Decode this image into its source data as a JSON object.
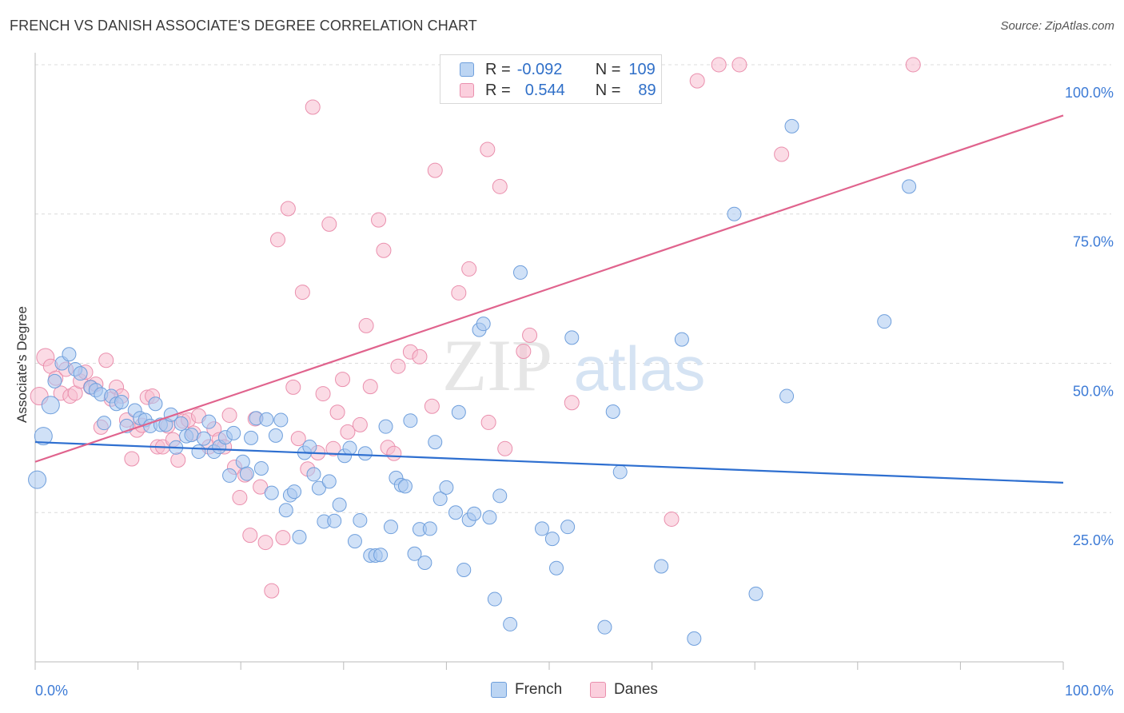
{
  "title": "FRENCH VS DANISH ASSOCIATE'S DEGREE CORRELATION CHART",
  "source": "Source: ZipAtlas.com",
  "watermark": {
    "zip": "ZIP",
    "atlas": "atlas"
  },
  "legend": {
    "french": {
      "r_label": "R =",
      "r_value": "-0.092",
      "n_label": "N =",
      "n_value": "109"
    },
    "danes": {
      "r_label": "R =",
      "r_value": "0.544",
      "n_label": "N =",
      "n_value": "89"
    }
  },
  "colors": {
    "french_fill": "#a9c8f0",
    "french_stroke": "#6f9fdc",
    "french_line": "#2e6fd0",
    "danes_fill": "#f7bdd0",
    "danes_stroke": "#ea8fad",
    "danes_line": "#e0638d",
    "axis_text": "#3d7bd6",
    "grid": "#dcdcdc"
  },
  "chart_data": {
    "type": "scatter",
    "title": "FRENCH VS DANISH ASSOCIATE'S DEGREE CORRELATION CHART",
    "xlabel": "",
    "ylabel": "Associate's Degree",
    "xlim": [
      0,
      100
    ],
    "ylim": [
      0,
      102
    ],
    "x_tick_labels": [
      "0.0%",
      "100.0%"
    ],
    "y_tick_labels": [
      "25.0%",
      "50.0%",
      "75.0%",
      "100.0%"
    ],
    "y_ticks": [
      25,
      50,
      75,
      100
    ],
    "grid": true,
    "legend_position": "top-center",
    "series": [
      {
        "name": "French",
        "trend": {
          "x": [
            0,
            100
          ],
          "y": [
            36.8,
            30.0
          ]
        },
        "points": [
          [
            0.2,
            30.5
          ],
          [
            0.8,
            37.8
          ],
          [
            1.5,
            43
          ],
          [
            1.9,
            47
          ],
          [
            2.6,
            50
          ],
          [
            3.3,
            51.5
          ],
          [
            3.9,
            49
          ],
          [
            4.4,
            48.3
          ],
          [
            5.4,
            46
          ],
          [
            5.9,
            45.5
          ],
          [
            6.4,
            44.8
          ],
          [
            6.7,
            40
          ],
          [
            7.4,
            44.5
          ],
          [
            7.9,
            43.2
          ],
          [
            8.4,
            43.5
          ],
          [
            8.9,
            39.5
          ],
          [
            9.7,
            42.1
          ],
          [
            10.2,
            40.8
          ],
          [
            10.7,
            40.5
          ],
          [
            11.2,
            39.5
          ],
          [
            11.7,
            43.2
          ],
          [
            12.2,
            39.7
          ],
          [
            12.7,
            39.7
          ],
          [
            13.2,
            41.4
          ],
          [
            13.7,
            35.9
          ],
          [
            14.2,
            39.9
          ],
          [
            14.7,
            37.8
          ],
          [
            15.2,
            38
          ],
          [
            15.9,
            35.2
          ],
          [
            16.4,
            37.4
          ],
          [
            16.9,
            40.2
          ],
          [
            17.4,
            35.2
          ],
          [
            17.9,
            36
          ],
          [
            18.5,
            37.6
          ],
          [
            18.9,
            31.2
          ],
          [
            19.3,
            38.3
          ],
          [
            20.2,
            33.5
          ],
          [
            20.6,
            31.5
          ],
          [
            21,
            37.5
          ],
          [
            21.5,
            40.8
          ],
          [
            22,
            32.4
          ],
          [
            22.5,
            40.6
          ],
          [
            23,
            28.3
          ],
          [
            23.4,
            37.9
          ],
          [
            23.9,
            40.5
          ],
          [
            24.4,
            25.4
          ],
          [
            24.8,
            27.9
          ],
          [
            25.2,
            28.5
          ],
          [
            25.7,
            20.9
          ],
          [
            26.2,
            35
          ],
          [
            26.7,
            36
          ],
          [
            27.1,
            31.4
          ],
          [
            27.6,
            29.1
          ],
          [
            28.1,
            23.5
          ],
          [
            28.6,
            30.2
          ],
          [
            29.1,
            23.6
          ],
          [
            29.6,
            26.3
          ],
          [
            30.1,
            34.5
          ],
          [
            30.6,
            35.8
          ],
          [
            31.1,
            20.2
          ],
          [
            31.6,
            23.7
          ],
          [
            32.1,
            34.9
          ],
          [
            32.6,
            17.8
          ],
          [
            33.1,
            17.8
          ],
          [
            33.6,
            17.9
          ],
          [
            34.1,
            39.4
          ],
          [
            34.6,
            22.6
          ],
          [
            35.1,
            30.8
          ],
          [
            35.6,
            29.6
          ],
          [
            36,
            29.4
          ],
          [
            36.5,
            40.4
          ],
          [
            36.9,
            18.1
          ],
          [
            37.4,
            22.2
          ],
          [
            37.9,
            16.6
          ],
          [
            38.4,
            22.3
          ],
          [
            38.9,
            36.8
          ],
          [
            39.4,
            27.3
          ],
          [
            40,
            29.2
          ],
          [
            40.9,
            25
          ],
          [
            41.2,
            41.8
          ],
          [
            41.7,
            15.4
          ],
          [
            42.2,
            23.8
          ],
          [
            42.7,
            24.8
          ],
          [
            43.2,
            55.6
          ],
          [
            43.6,
            56.6
          ],
          [
            44.2,
            24.2
          ],
          [
            44.7,
            10.5
          ],
          [
            45.2,
            27.8
          ],
          [
            46.2,
            6.3
          ],
          [
            47.2,
            65.2
          ],
          [
            49.3,
            22.3
          ],
          [
            50.3,
            20.6
          ],
          [
            50.7,
            15.7
          ],
          [
            51.8,
            22.6
          ],
          [
            52.2,
            54.3
          ],
          [
            55.4,
            5.8
          ],
          [
            56.2,
            41.9
          ],
          [
            56.9,
            31.8
          ],
          [
            60.9,
            16
          ],
          [
            62.9,
            54
          ],
          [
            64.1,
            3.9
          ],
          [
            68,
            75
          ],
          [
            70.1,
            11.4
          ],
          [
            73.1,
            44.5
          ],
          [
            73.6,
            89.7
          ],
          [
            82.6,
            57
          ],
          [
            85,
            79.6
          ]
        ]
      },
      {
        "name": "Danes",
        "trend": {
          "x": [
            0,
            100
          ],
          "y": [
            33.5,
            91.5
          ]
        },
        "points": [
          [
            0.4,
            44.5
          ],
          [
            1.0,
            51
          ],
          [
            1.5,
            49.5
          ],
          [
            2.0,
            47.5
          ],
          [
            2.5,
            45
          ],
          [
            3.0,
            49
          ],
          [
            3.4,
            44.5
          ],
          [
            3.9,
            45
          ],
          [
            4.4,
            47
          ],
          [
            4.9,
            48.5
          ],
          [
            5.4,
            46
          ],
          [
            5.9,
            46.5
          ],
          [
            6.4,
            39.3
          ],
          [
            6.9,
            50.5
          ],
          [
            7.4,
            44
          ],
          [
            7.9,
            46
          ],
          [
            8.4,
            44.5
          ],
          [
            8.9,
            40.5
          ],
          [
            9.4,
            34
          ],
          [
            9.9,
            38.8
          ],
          [
            10.4,
            39.6
          ],
          [
            10.9,
            44.3
          ],
          [
            11.4,
            44.5
          ],
          [
            11.9,
            36
          ],
          [
            12.4,
            36
          ],
          [
            12.9,
            39.5
          ],
          [
            13.4,
            37.2
          ],
          [
            13.9,
            33.8
          ],
          [
            14.4,
            40.3
          ],
          [
            14.9,
            40.5
          ],
          [
            15.4,
            38.3
          ],
          [
            15.9,
            41.2
          ],
          [
            16.9,
            36
          ],
          [
            17.4,
            39
          ],
          [
            17.9,
            37.2
          ],
          [
            18.4,
            36
          ],
          [
            18.9,
            41.3
          ],
          [
            19.4,
            32.6
          ],
          [
            19.9,
            27.5
          ],
          [
            20.4,
            31.3
          ],
          [
            20.9,
            21.2
          ],
          [
            21.4,
            40.7
          ],
          [
            21.9,
            29.3
          ],
          [
            22.4,
            20
          ],
          [
            23,
            11.9
          ],
          [
            23.6,
            70.7
          ],
          [
            24.1,
            20.8
          ],
          [
            24.6,
            75.9
          ],
          [
            25.1,
            46
          ],
          [
            25.6,
            37.4
          ],
          [
            26,
            61.9
          ],
          [
            26.5,
            32.3
          ],
          [
            27,
            92.9
          ],
          [
            27.5,
            35
          ],
          [
            28,
            44.9
          ],
          [
            28.6,
            73.3
          ],
          [
            29,
            35.7
          ],
          [
            29.4,
            41.8
          ],
          [
            29.9,
            47.3
          ],
          [
            30.4,
            38.5
          ],
          [
            31.6,
            39.7
          ],
          [
            32.2,
            56.3
          ],
          [
            32.6,
            46.1
          ],
          [
            33.4,
            74
          ],
          [
            33.9,
            68.9
          ],
          [
            34.3,
            35.9
          ],
          [
            34.9,
            34.9
          ],
          [
            35.3,
            49.5
          ],
          [
            36.5,
            51.9
          ],
          [
            37.4,
            51.1
          ],
          [
            38.6,
            42.8
          ],
          [
            38.9,
            82.3
          ],
          [
            41.2,
            61.8
          ],
          [
            42.2,
            65.8
          ],
          [
            44,
            85.8
          ],
          [
            44.1,
            40.1
          ],
          [
            45.2,
            79.6
          ],
          [
            45.7,
            35.7
          ],
          [
            47.5,
            52
          ],
          [
            48.1,
            54.7
          ],
          [
            52.2,
            43.4
          ],
          [
            54.2,
            100
          ],
          [
            61.9,
            23.9
          ],
          [
            64.4,
            97.3
          ],
          [
            66.5,
            100
          ],
          [
            68.5,
            100
          ],
          [
            72.6,
            85
          ],
          [
            85.4,
            100
          ]
        ]
      }
    ]
  }
}
